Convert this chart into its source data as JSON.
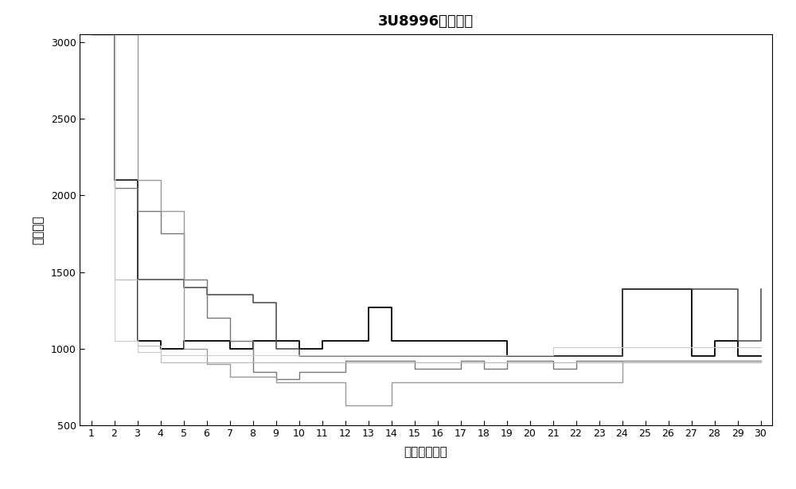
{
  "title": "3U8996价格趋势",
  "xlabel": "距离离港日期",
  "ylabel": "最低价格",
  "xlim": [
    0.5,
    30.5
  ],
  "ylim": [
    500,
    3050
  ],
  "yticks": [
    500,
    1000,
    1500,
    2000,
    2500,
    3000
  ],
  "xticks": [
    1,
    2,
    3,
    4,
    5,
    6,
    7,
    8,
    9,
    10,
    11,
    12,
    13,
    14,
    15,
    16,
    17,
    18,
    19,
    20,
    21,
    22,
    23,
    24,
    25,
    26,
    27,
    28,
    29,
    30
  ],
  "background_color": "#ffffff",
  "lines": [
    {
      "color": "#000000",
      "linewidth": 1.3,
      "x": [
        1,
        2,
        3,
        4,
        5,
        6,
        7,
        8,
        9,
        10,
        11,
        12,
        13,
        14,
        15,
        16,
        17,
        18,
        19,
        20,
        21,
        22,
        23,
        24,
        25,
        26,
        27,
        28,
        29,
        30
      ],
      "y": [
        3050,
        2100,
        1050,
        1000,
        1050,
        1050,
        1000,
        1050,
        1050,
        1000,
        1050,
        1050,
        1270,
        1050,
        1050,
        1050,
        1050,
        1050,
        950,
        950,
        950,
        950,
        950,
        1390,
        1390,
        1390,
        950,
        1050,
        950,
        950
      ]
    },
    {
      "color": "#444444",
      "linewidth": 1.1,
      "x": [
        1,
        2,
        3,
        4,
        5,
        6,
        7,
        8,
        9,
        10,
        11,
        12,
        13,
        14,
        15,
        16,
        17,
        18,
        19,
        20,
        21,
        22,
        23,
        24,
        25,
        26,
        27,
        28,
        29,
        30
      ],
      "y": [
        3050,
        2100,
        1450,
        1450,
        1400,
        1350,
        1350,
        1300,
        1000,
        950,
        950,
        950,
        950,
        950,
        950,
        950,
        950,
        950,
        950,
        950,
        950,
        950,
        950,
        1390,
        1390,
        1390,
        1390,
        1390,
        1050,
        1390
      ]
    },
    {
      "color": "#777777",
      "linewidth": 1.0,
      "x": [
        1,
        2,
        3,
        4,
        5,
        6,
        7,
        8,
        9,
        10,
        11,
        12,
        13,
        14,
        15,
        16,
        17,
        18,
        19,
        20,
        21,
        22,
        23,
        24,
        25,
        26,
        27,
        28,
        29,
        30
      ],
      "y": [
        3050,
        2050,
        1900,
        1750,
        1450,
        1200,
        1050,
        850,
        800,
        850,
        850,
        920,
        920,
        920,
        870,
        870,
        920,
        870,
        920,
        920,
        870,
        920,
        920,
        920,
        920,
        920,
        920,
        920,
        920,
        920
      ]
    },
    {
      "color": "#999999",
      "linewidth": 1.0,
      "x": [
        1,
        2,
        3,
        4,
        5,
        6,
        7,
        8,
        9,
        10,
        11,
        12,
        13,
        14,
        15,
        16,
        17,
        18,
        19,
        20,
        21,
        22,
        23,
        24,
        25,
        26,
        27,
        28,
        29,
        30
      ],
      "y": [
        3050,
        3050,
        2100,
        1900,
        1000,
        900,
        820,
        820,
        780,
        780,
        780,
        630,
        630,
        780,
        780,
        780,
        780,
        780,
        780,
        780,
        780,
        780,
        780,
        920,
        920,
        920,
        920,
        920,
        920,
        920
      ]
    },
    {
      "color": "#bbbbbb",
      "linewidth": 0.9,
      "x": [
        1,
        2,
        3,
        4,
        5,
        6,
        7,
        8,
        9,
        10,
        11,
        12,
        13,
        14,
        15,
        16,
        17,
        18,
        19,
        20,
        21,
        22,
        23,
        24,
        25,
        26,
        27,
        28,
        29,
        30
      ],
      "y": [
        3050,
        1450,
        1020,
        910,
        910,
        910,
        910,
        910,
        910,
        910,
        910,
        910,
        910,
        910,
        910,
        910,
        910,
        910,
        910,
        910,
        910,
        910,
        910,
        910,
        910,
        910,
        910,
        910,
        910,
        910
      ]
    },
    {
      "color": "#cccccc",
      "linewidth": 0.85,
      "x": [
        1,
        2,
        3,
        4,
        5,
        6,
        7,
        8,
        9,
        10,
        11,
        12,
        13,
        14,
        15,
        16,
        17,
        18,
        19,
        20,
        21,
        22,
        23,
        24,
        25,
        26,
        27,
        28,
        29,
        30
      ],
      "y": [
        3050,
        1050,
        980,
        960,
        960,
        960,
        960,
        960,
        960,
        960,
        960,
        960,
        960,
        960,
        960,
        960,
        960,
        960,
        960,
        960,
        1010,
        1010,
        1010,
        1010,
        1010,
        1010,
        1010,
        1010,
        1010,
        1010
      ]
    }
  ]
}
